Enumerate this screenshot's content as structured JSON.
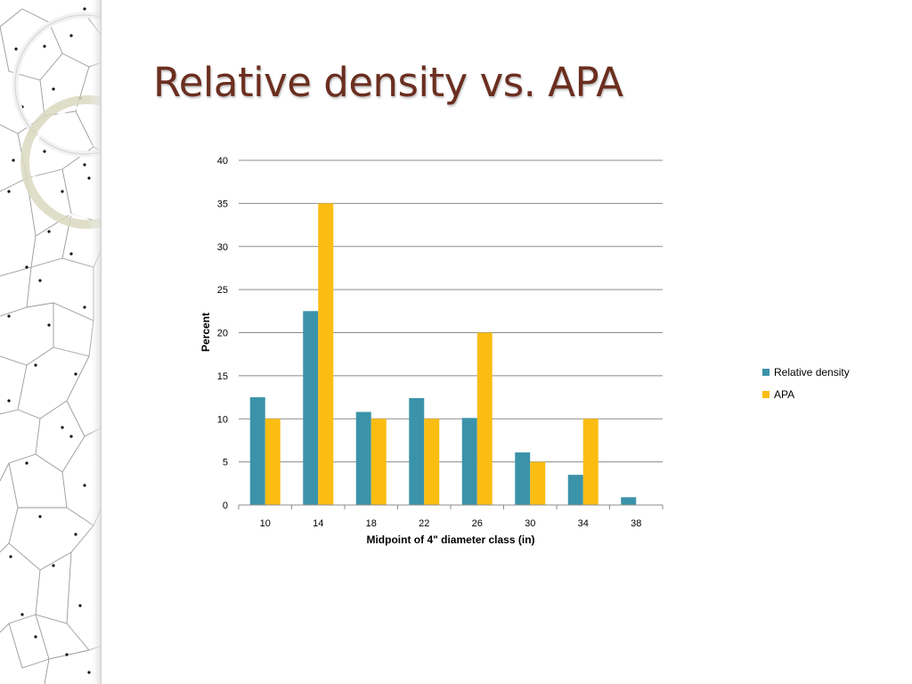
{
  "slide": {
    "title": "Relative density vs. APA"
  },
  "colors": {
    "title": "#6b2e1f",
    "relative_density": "#3b93a9",
    "apa": "#fbbd12",
    "gridline": "#8c8c8c"
  },
  "chart_data": {
    "type": "bar",
    "title": "",
    "xlabel": "Midpoint of 4\" diameter class (in)",
    "ylabel": "Percent",
    "categories": [
      "10",
      "14",
      "18",
      "22",
      "26",
      "30",
      "34",
      "38"
    ],
    "ylim": [
      0,
      40
    ],
    "yticks": [
      0,
      5,
      10,
      15,
      20,
      25,
      30,
      35,
      40
    ],
    "grid": true,
    "legend_position": "right",
    "series": [
      {
        "name": "Relative density",
        "color": "#3b93a9",
        "values": [
          12.5,
          22.5,
          10.8,
          12.4,
          10.1,
          6.1,
          3.5,
          0.9
        ]
      },
      {
        "name": "APA",
        "color": "#fbbd12",
        "values": [
          10,
          35,
          10,
          10,
          20,
          5,
          10,
          0
        ]
      }
    ]
  }
}
